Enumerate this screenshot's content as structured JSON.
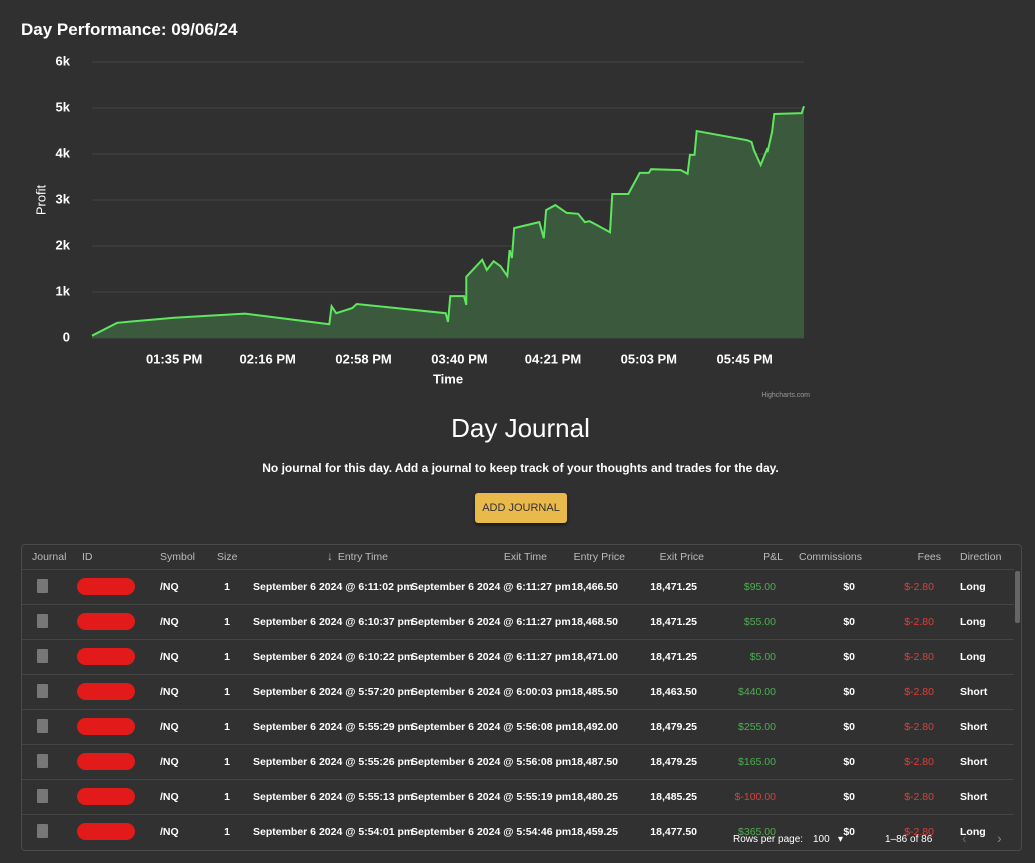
{
  "title": "Day Performance: 09/06/24",
  "chart_data": {
    "type": "area",
    "y_label": "Profit",
    "x_label": "Time",
    "credits": "Highcharts.com",
    "color": "#5ee65e",
    "fill": "#3b5a3d",
    "grid": true,
    "x": [
      "12:59 PM",
      "01:10 PM",
      "01:35 PM",
      "02:06 PM",
      "02:43 PM",
      "02:44 PM",
      "02:46 PM",
      "02:53 PM",
      "02:55 PM",
      "03:34 PM",
      "03:35 PM",
      "03:36 PM",
      "03:42 PM",
      "03:43 PM",
      "03:43 PM",
      "03:50 PM",
      "03:52 PM",
      "03:55 PM",
      "03:58 PM",
      "04:01 PM",
      "04:02 PM",
      "04:03 PM",
      "04:04 PM",
      "04:15 PM",
      "04:17 PM",
      "04:18 PM",
      "04:22 PM",
      "04:27 PM",
      "04:32 PM",
      "04:35 PM",
      "04:37 PM",
      "04:40 PM",
      "04:46 PM",
      "04:47 PM",
      "04:54 PM",
      "04:59 PM",
      "05:03 PM",
      "05:04 PM",
      "05:17 PM",
      "05:20 PM",
      "05:21 PM",
      "05:23 PM",
      "05:24 PM",
      "05:46 PM",
      "05:48 PM",
      "05:49 PM",
      "05:52 PM",
      "05:55 PM",
      "05:55 PM",
      "05:57 PM",
      "05:58 PM",
      "06:10 PM",
      "06:11 PM"
    ],
    "values": [
      50,
      330,
      440,
      530,
      300,
      690,
      540,
      650,
      740,
      540,
      350,
      910,
      910,
      720,
      1330,
      1700,
      1480,
      1670,
      1560,
      1350,
      1910,
      1740,
      2390,
      2520,
      2170,
      2780,
      2890,
      2720,
      2700,
      2520,
      2540,
      2460,
      2300,
      3130,
      3130,
      3590,
      3590,
      3670,
      3650,
      3570,
      3980,
      3980,
      4500,
      4300,
      4260,
      4090,
      3760,
      4130,
      4040,
      4480,
      4870,
      4890,
      5040
    ],
    "xlim": [
      "12:59 PM",
      "06:11 PM"
    ],
    "xticks": [
      "01:35 PM",
      "02:16 PM",
      "02:58 PM",
      "03:40 PM",
      "04:21 PM",
      "05:03 PM",
      "05:45 PM"
    ],
    "ylim": [
      0,
      6000
    ],
    "yticks": [
      0,
      {
        "value": 1000,
        "label": "1k"
      },
      {
        "value": 2000,
        "label": "2k"
      },
      {
        "value": 3000,
        "label": "3k"
      },
      {
        "value": 4000,
        "label": "4k"
      },
      {
        "value": 5000,
        "label": "5k"
      },
      {
        "value": 6000,
        "label": "6k"
      }
    ]
  },
  "journal": {
    "heading": "Day Journal",
    "message": "No journal for this day. Add a journal to keep track of your thoughts and trades for the day.",
    "button": "ADD JOURNAL"
  },
  "table": {
    "columns": [
      "Journal",
      "ID",
      "Symbol",
      "Size",
      "Entry Time",
      "Exit Time",
      "Entry Price",
      "Exit Price",
      "P&L",
      "Commissions",
      "Fees",
      "Direction"
    ],
    "rows": [
      {
        "symbol": "/NQ",
        "size": "1",
        "entry_time": "September 6 2024 @ 6:11:02 pm",
        "exit_time": "September 6 2024 @ 6:11:27 pm",
        "entry_price": "18,466.50",
        "exit_price": "18,471.25",
        "pnl": "$95.00",
        "commissions": "$0",
        "fees": "$-2.80",
        "direction": "Long"
      },
      {
        "symbol": "/NQ",
        "size": "1",
        "entry_time": "September 6 2024 @ 6:10:37 pm",
        "exit_time": "September 6 2024 @ 6:11:27 pm",
        "entry_price": "18,468.50",
        "exit_price": "18,471.25",
        "pnl": "$55.00",
        "commissions": "$0",
        "fees": "$-2.80",
        "direction": "Long"
      },
      {
        "symbol": "/NQ",
        "size": "1",
        "entry_time": "September 6 2024 @ 6:10:22 pm",
        "exit_time": "September 6 2024 @ 6:11:27 pm",
        "entry_price": "18,471.00",
        "exit_price": "18,471.25",
        "pnl": "$5.00",
        "commissions": "$0",
        "fees": "$-2.80",
        "direction": "Long"
      },
      {
        "symbol": "/NQ",
        "size": "1",
        "entry_time": "September 6 2024 @ 5:57:20 pm",
        "exit_time": "September 6 2024 @ 6:00:03 pm",
        "entry_price": "18,485.50",
        "exit_price": "18,463.50",
        "pnl": "$440.00",
        "commissions": "$0",
        "fees": "$-2.80",
        "direction": "Short"
      },
      {
        "symbol": "/NQ",
        "size": "1",
        "entry_time": "September 6 2024 @ 5:55:29 pm",
        "exit_time": "September 6 2024 @ 5:56:08 pm",
        "entry_price": "18,492.00",
        "exit_price": "18,479.25",
        "pnl": "$255.00",
        "commissions": "$0",
        "fees": "$-2.80",
        "direction": "Short"
      },
      {
        "symbol": "/NQ",
        "size": "1",
        "entry_time": "September 6 2024 @ 5:55:26 pm",
        "exit_time": "September 6 2024 @ 5:56:08 pm",
        "entry_price": "18,487.50",
        "exit_price": "18,479.25",
        "pnl": "$165.00",
        "commissions": "$0",
        "fees": "$-2.80",
        "direction": "Short"
      },
      {
        "symbol": "/NQ",
        "size": "1",
        "entry_time": "September 6 2024 @ 5:55:13 pm",
        "exit_time": "September 6 2024 @ 5:55:19 pm",
        "entry_price": "18,480.25",
        "exit_price": "18,485.25",
        "pnl": "$-100.00",
        "commissions": "$0",
        "fees": "$-2.80",
        "direction": "Short"
      },
      {
        "symbol": "/NQ",
        "size": "1",
        "entry_time": "September 6 2024 @ 5:54:01 pm",
        "exit_time": "September 6 2024 @ 5:54:46 pm",
        "entry_price": "18,459.25",
        "exit_price": "18,477.50",
        "pnl": "$365.00",
        "commissions": "$0",
        "fees": "$-2.80",
        "direction": "Long"
      }
    ]
  },
  "pagination": {
    "label": "Rows per page:",
    "value": "100",
    "range": "1–86 of 86"
  }
}
